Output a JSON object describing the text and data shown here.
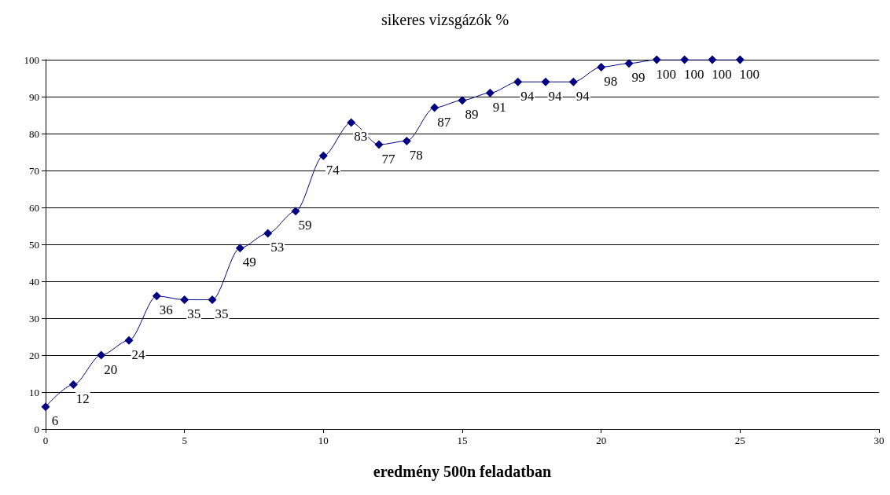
{
  "chart_data": {
    "type": "line",
    "title": "sikeres vizsgázók %",
    "xlabel": "eredmény 500n feladatban",
    "x": [
      0,
      1,
      2,
      3,
      4,
      5,
      6,
      7,
      8,
      9,
      10,
      11,
      12,
      13,
      14,
      15,
      16,
      17,
      18,
      19,
      20,
      21,
      22,
      23,
      24,
      25
    ],
    "series": [
      {
        "color": "#000080",
        "values": [
          6,
          12,
          20,
          24,
          36,
          35,
          35,
          49,
          53,
          59,
          74,
          83,
          77,
          78,
          87,
          89,
          91,
          94,
          94,
          94,
          98,
          99,
          100,
          100,
          100,
          100
        ]
      }
    ],
    "xlim": [
      0,
      30
    ],
    "xticks": [
      0,
      5,
      10,
      15,
      20,
      25,
      30
    ],
    "ylim": [
      0,
      100
    ],
    "yticks": [
      0,
      10,
      20,
      30,
      40,
      50,
      60,
      70,
      80,
      90,
      100
    ],
    "grid": "y",
    "marker": "diamond",
    "line_style": "solid",
    "data_labels": true
  }
}
